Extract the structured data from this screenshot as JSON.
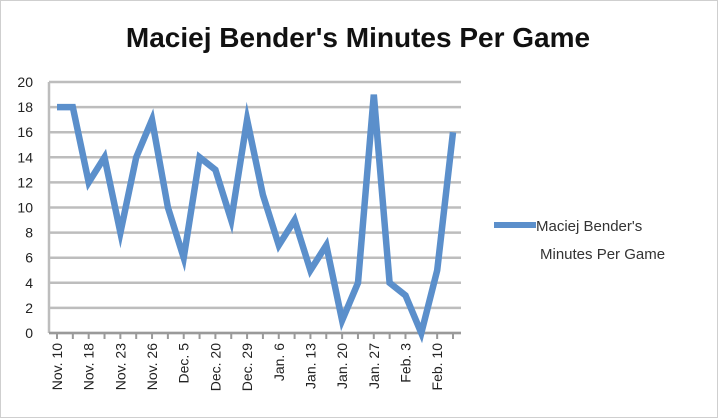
{
  "chart_data": {
    "type": "line",
    "title": "Maciej Bender's Minutes Per Game",
    "xlabel": "",
    "ylabel": "",
    "ylim": [
      0,
      20
    ],
    "yticks": [
      0,
      2,
      4,
      6,
      8,
      10,
      12,
      14,
      16,
      18,
      20
    ],
    "grid": true,
    "legend_position": "right",
    "x_tick_labels": [
      "Nov. 10",
      "Nov. 18",
      "Nov. 23",
      "Nov. 26",
      "Dec. 5",
      "Dec. 20",
      "Dec. 29",
      "Jan. 6",
      "Jan. 13",
      "Jan. 20",
      "Jan. 27",
      "Feb. 3",
      "Feb. 10"
    ],
    "series": [
      {
        "name": "Maciej Bender's Minutes Per Game",
        "color": "#5b8fcb",
        "values": [
          18,
          18,
          12,
          14,
          8,
          14,
          17,
          10,
          6,
          14,
          13,
          9,
          17,
          11,
          7,
          9,
          5,
          7,
          1,
          4,
          19,
          4,
          3,
          0,
          5,
          16
        ]
      }
    ]
  },
  "legend": {
    "line1": "Maciej Bender's",
    "line2": "Minutes Per Game"
  }
}
